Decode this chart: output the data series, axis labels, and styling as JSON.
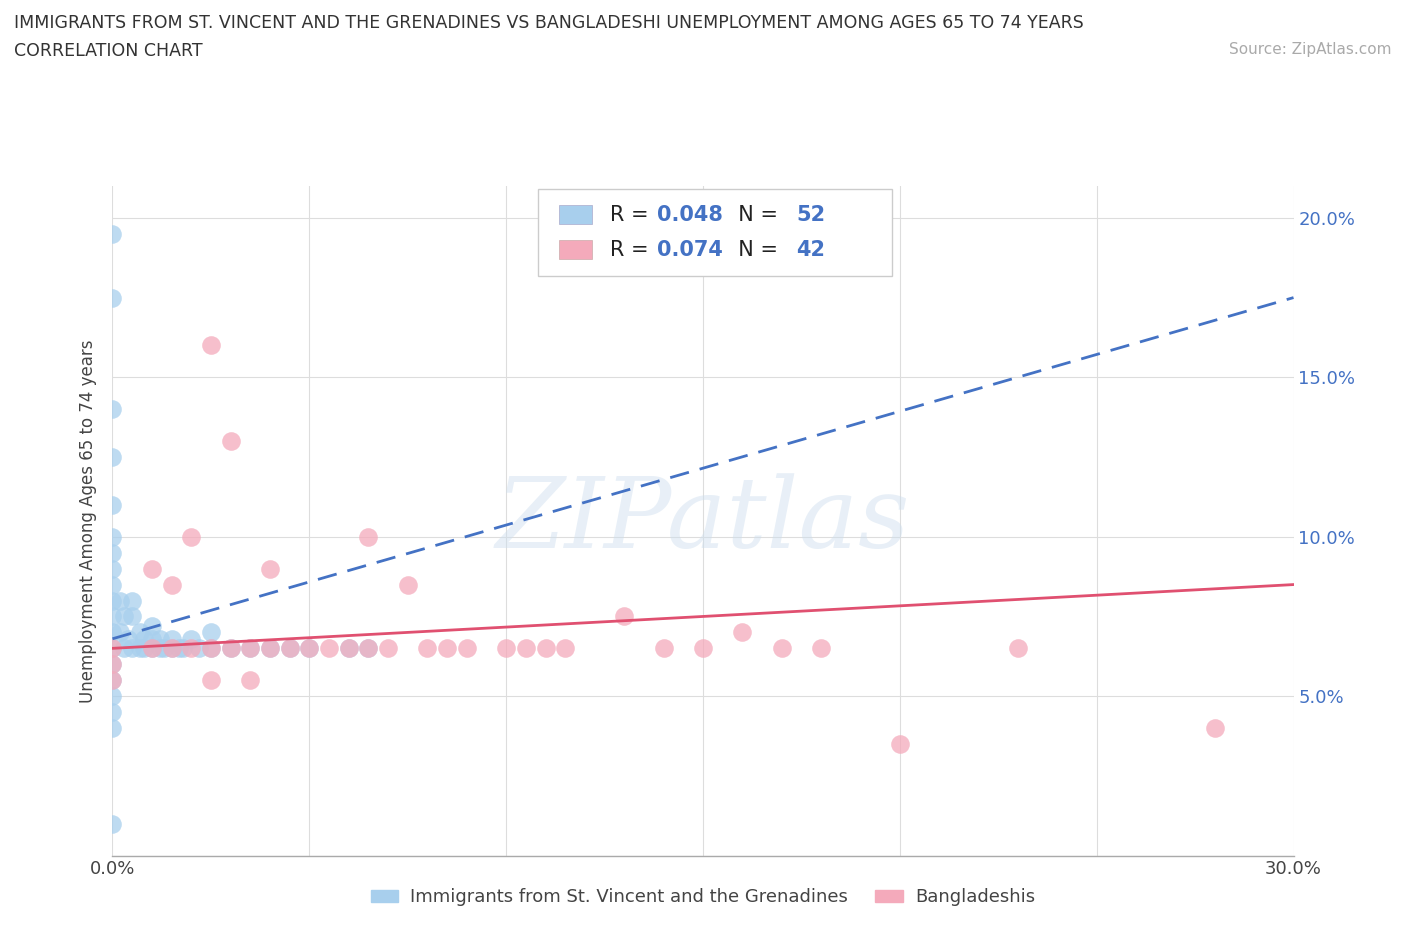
{
  "title_line1": "IMMIGRANTS FROM ST. VINCENT AND THE GRENADINES VS BANGLADESHI UNEMPLOYMENT AMONG AGES 65 TO 74 YEARS",
  "title_line2": "CORRELATION CHART",
  "source_text": "Source: ZipAtlas.com",
  "ylabel": "Unemployment Among Ages 65 to 74 years",
  "xlim": [
    0.0,
    0.3
  ],
  "ylim": [
    0.0,
    0.21
  ],
  "xticks": [
    0.0,
    0.05,
    0.1,
    0.15,
    0.2,
    0.25,
    0.3
  ],
  "xtick_labels": [
    "0.0%",
    "",
    "",
    "",
    "",
    "",
    "30.0%"
  ],
  "yticks": [
    0.0,
    0.05,
    0.1,
    0.15,
    0.2
  ],
  "ytick_labels": [
    "",
    "5.0%",
    "10.0%",
    "15.0%",
    "20.0%"
  ],
  "blue_color": "#A8CFED",
  "pink_color": "#F4AABB",
  "trendline_blue_color": "#4472C4",
  "trendline_pink_color": "#E05070",
  "watermark_text": "ZIPatlas",
  "blue_trend_y0": 0.068,
  "blue_trend_y1": 0.175,
  "pink_trend_y0": 0.065,
  "pink_trend_y1": 0.085,
  "blue_scatter_x": [
    0.0,
    0.0,
    0.0,
    0.0,
    0.0,
    0.0,
    0.0,
    0.0,
    0.0,
    0.0,
    0.0,
    0.0,
    0.0,
    0.0,
    0.0,
    0.0,
    0.0,
    0.0,
    0.0,
    0.002,
    0.002,
    0.003,
    0.003,
    0.004,
    0.005,
    0.005,
    0.005,
    0.007,
    0.007,
    0.008,
    0.008,
    0.01,
    0.01,
    0.01,
    0.012,
    0.012,
    0.013,
    0.015,
    0.015,
    0.017,
    0.018,
    0.02,
    0.022,
    0.025,
    0.025,
    0.03,
    0.035,
    0.04,
    0.045,
    0.05,
    0.06,
    0.065
  ],
  "blue_scatter_y": [
    0.195,
    0.175,
    0.14,
    0.125,
    0.11,
    0.1,
    0.095,
    0.09,
    0.085,
    0.08,
    0.075,
    0.07,
    0.065,
    0.06,
    0.055,
    0.05,
    0.045,
    0.04,
    0.01,
    0.08,
    0.07,
    0.075,
    0.065,
    0.068,
    0.08,
    0.075,
    0.065,
    0.065,
    0.07,
    0.065,
    0.068,
    0.068,
    0.072,
    0.065,
    0.068,
    0.065,
    0.065,
    0.068,
    0.065,
    0.065,
    0.065,
    0.068,
    0.065,
    0.07,
    0.065,
    0.065,
    0.065,
    0.065,
    0.065,
    0.065,
    0.065,
    0.065
  ],
  "pink_scatter_x": [
    0.0,
    0.0,
    0.0,
    0.01,
    0.01,
    0.015,
    0.015,
    0.02,
    0.02,
    0.025,
    0.025,
    0.025,
    0.03,
    0.03,
    0.035,
    0.035,
    0.04,
    0.04,
    0.045,
    0.05,
    0.055,
    0.06,
    0.065,
    0.065,
    0.07,
    0.075,
    0.08,
    0.085,
    0.09,
    0.1,
    0.105,
    0.11,
    0.115,
    0.13,
    0.14,
    0.15,
    0.16,
    0.17,
    0.18,
    0.2,
    0.23,
    0.28
  ],
  "pink_scatter_y": [
    0.065,
    0.06,
    0.055,
    0.09,
    0.065,
    0.085,
    0.065,
    0.1,
    0.065,
    0.16,
    0.065,
    0.055,
    0.13,
    0.065,
    0.065,
    0.055,
    0.09,
    0.065,
    0.065,
    0.065,
    0.065,
    0.065,
    0.1,
    0.065,
    0.065,
    0.085,
    0.065,
    0.065,
    0.065,
    0.065,
    0.065,
    0.065,
    0.065,
    0.075,
    0.065,
    0.065,
    0.07,
    0.065,
    0.065,
    0.035,
    0.065,
    0.04
  ],
  "bottom_legend": [
    "Immigrants from St. Vincent and the Grenadines",
    "Bangladeshis"
  ]
}
